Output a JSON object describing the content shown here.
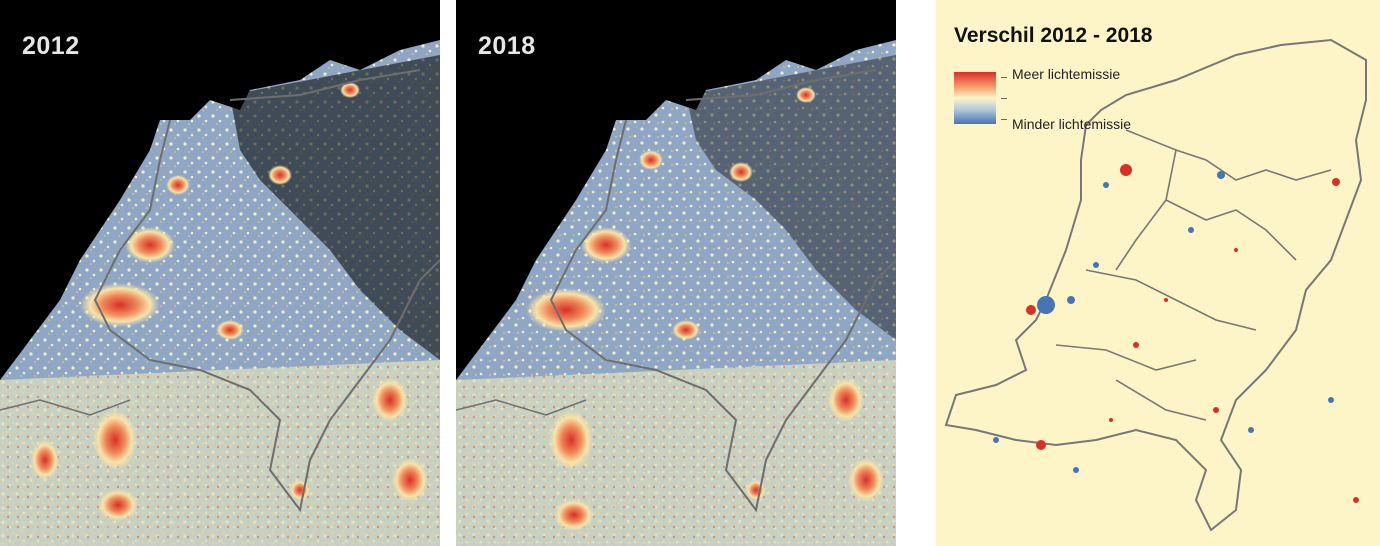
{
  "panels": {
    "year_2012": {
      "label": "2012"
    },
    "year_2018": {
      "label": "2018"
    },
    "difference": {
      "title": "Verschil 2012 - 2018",
      "legend": {
        "more": "Meer lichtemissie",
        "less": "Minder lichtemissie"
      }
    }
  },
  "colors": {
    "night_background": "#000000",
    "sea_glow": "#7f9bbd",
    "land_light": "#eef0c8",
    "urban_high": "#d73027",
    "difference_background": "#fdf5c8",
    "border": "#6e6e6e"
  }
}
